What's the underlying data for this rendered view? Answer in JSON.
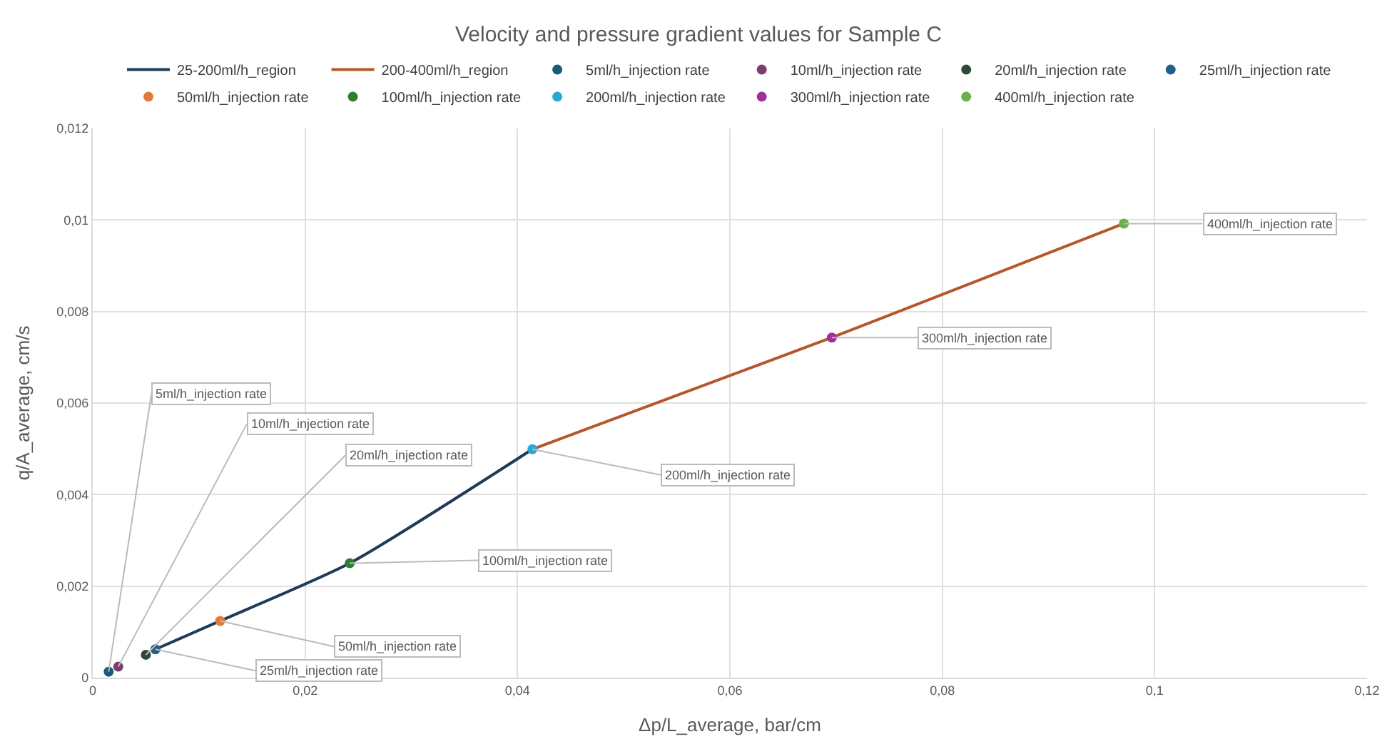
{
  "chart_data": {
    "type": "scatter",
    "title": "Velocity and pressure gradient values for Sample C",
    "xlabel": "Δp/L_average, bar/cm",
    "ylabel": "q/A_average, cm/s",
    "series": [
      {
        "name": "25-200ml/h_region",
        "type": "line",
        "marker": "none",
        "color": "#1f3b57",
        "x": [
          0.0059,
          0.012,
          0.0242,
          0.0414
        ],
        "values": [
          0.00062,
          0.00124,
          0.0025,
          0.00499
        ]
      },
      {
        "name": "200-400ml/h_region",
        "type": "line",
        "marker": "none",
        "color": "#b5572a",
        "x": [
          0.0414,
          0.0696,
          0.0971
        ],
        "values": [
          0.00499,
          0.00743,
          0.00992
        ]
      },
      {
        "name": "5ml/h_injection rate",
        "color": "#1a5b7a",
        "x": [
          0.0015
        ],
        "values": [
          0.00013
        ]
      },
      {
        "name": "10ml/h_injection rate",
        "color": "#7a3f6e",
        "x": [
          0.0024
        ],
        "values": [
          0.00024
        ]
      },
      {
        "name": "20ml/h_injection rate",
        "color": "#2e4a36",
        "x": [
          0.005
        ],
        "values": [
          0.0005
        ]
      },
      {
        "name": "25ml/h_injection rate",
        "color": "#1f5f8a",
        "x": [
          0.0059
        ],
        "values": [
          0.00062
        ]
      },
      {
        "name": "50ml/h_injection rate",
        "color": "#e07a3a",
        "x": [
          0.012
        ],
        "values": [
          0.00124
        ]
      },
      {
        "name": "100ml/h_injection rate",
        "color": "#2e7d32",
        "x": [
          0.0242
        ],
        "values": [
          0.0025
        ]
      },
      {
        "name": "200ml/h_injection rate",
        "color": "#29a8d8",
        "x": [
          0.0414
        ],
        "values": [
          0.00499
        ]
      },
      {
        "name": "300ml/h_injection rate",
        "color": "#a0309a",
        "x": [
          0.0696
        ],
        "values": [
          0.00743
        ]
      },
      {
        "name": "400ml/h_injection rate",
        "color": "#6ab04c",
        "x": [
          0.0971
        ],
        "values": [
          0.00992
        ]
      }
    ],
    "annotations": [
      {
        "text": "5ml/h_injection rate",
        "x": 0.0015,
        "y": 0.00013
      },
      {
        "text": "10ml/h_injection rate",
        "x": 0.0024,
        "y": 0.00024
      },
      {
        "text": "20ml/h_injection rate",
        "x": 0.005,
        "y": 0.0005
      },
      {
        "text": "25ml/h_injection rate",
        "x": 0.0059,
        "y": 0.00062
      },
      {
        "text": "50ml/h_injection rate",
        "x": 0.012,
        "y": 0.00124
      },
      {
        "text": "100ml/h_injection rate",
        "x": 0.0242,
        "y": 0.0025
      },
      {
        "text": "200ml/h_injection rate",
        "x": 0.0414,
        "y": 0.00499
      },
      {
        "text": "300ml/h_injection rate",
        "x": 0.0696,
        "y": 0.00743
      },
      {
        "text": "400ml/h_injection rate",
        "x": 0.0971,
        "y": 0.00992
      }
    ],
    "xlim": [
      0,
      0.12
    ],
    "ylim": [
      0,
      0.012
    ],
    "xticks": [
      0,
      {
        "value": 0.02,
        "label": "0,02"
      },
      {
        "value": 0.04,
        "label": "0,04"
      },
      {
        "value": 0.06,
        "label": "0,06"
      },
      {
        "value": 0.08,
        "label": "0,08"
      },
      {
        "value": 0.1,
        "label": "0,1"
      },
      {
        "value": 0.12,
        "label": "0,12"
      }
    ],
    "yticks": [
      0,
      {
        "value": 0.002,
        "label": "0,002"
      },
      {
        "value": 0.004,
        "label": "0,004"
      },
      {
        "value": 0.006,
        "label": "0,006"
      },
      {
        "value": 0.008,
        "label": "0,008"
      },
      {
        "value": 0.01,
        "label": "0,01"
      },
      {
        "value": 0.012,
        "label": "0,012"
      }
    ],
    "grid": true,
    "legend": "top",
    "marker": "circle"
  }
}
